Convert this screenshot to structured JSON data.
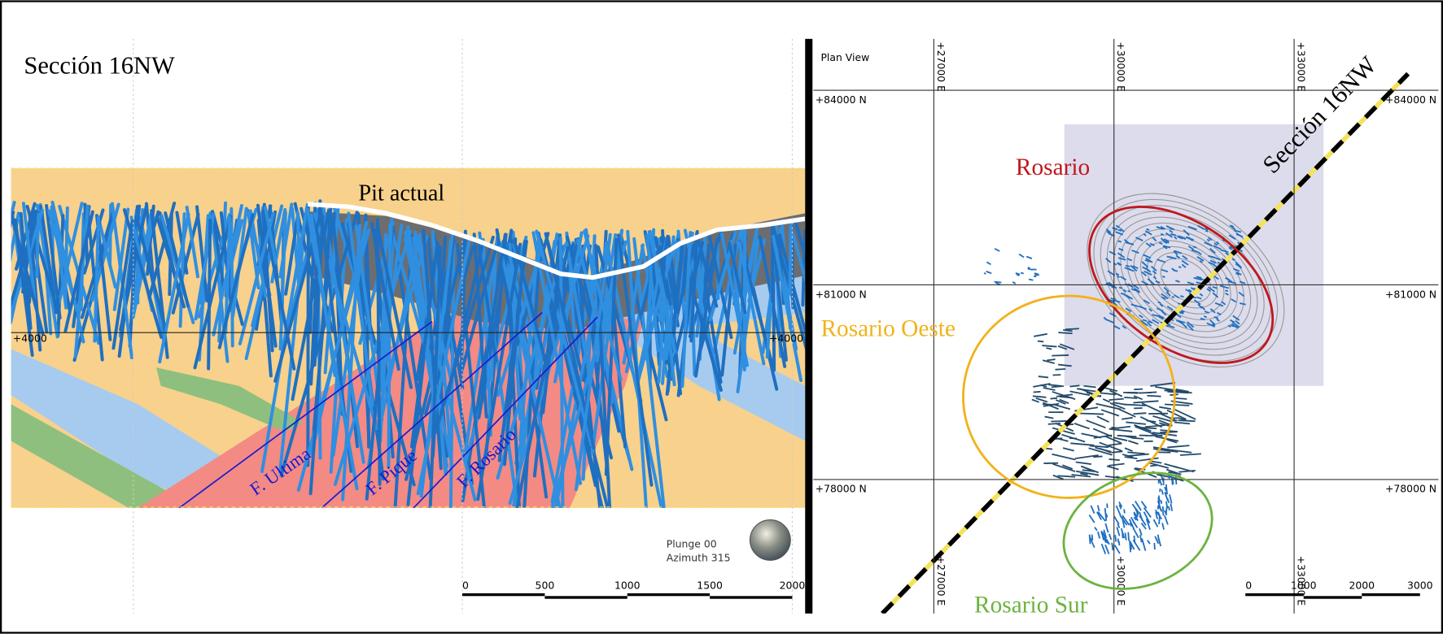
{
  "left_panel": {
    "title": "Sección 16NW",
    "pit_label": "Pit actual",
    "elevation_labels": [
      "+4000",
      "+4000"
    ],
    "fault_labels": [
      "F. Ultima",
      "F. Pique",
      "F. Rosario"
    ],
    "view_labels": [
      "Plunge 00",
      "Azimuth 315"
    ],
    "scale_labels": [
      "0",
      "500",
      "1000",
      "1500",
      "2000"
    ]
  },
  "right_panel": {
    "title": "Plan View",
    "easting_top": [
      "+27000 E",
      "+30000 E",
      "+33000 E"
    ],
    "easting_bottom": [
      "+27000 E",
      "+30000 E",
      "+33000 E"
    ],
    "northing_left": [
      "+84000 N",
      "+81000 N",
      "+78000 N"
    ],
    "northing_right": [
      "+84000 N",
      "+81000 N",
      "+78000 N"
    ],
    "section_label": "Sección 16NW",
    "zones": [
      "Rosario",
      "Rosario Oeste",
      "Rosario Sur"
    ],
    "scale_labels": [
      "0",
      "1000",
      "2000",
      "3000"
    ]
  }
}
